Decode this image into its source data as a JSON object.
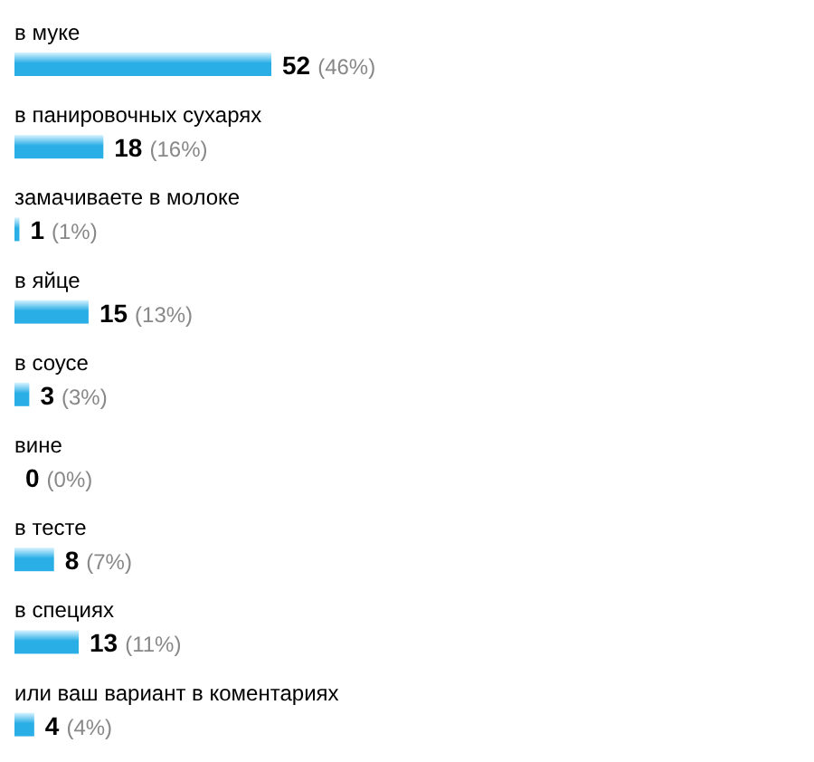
{
  "chart_data": {
    "type": "bar",
    "orientation": "horizontal",
    "color": "#2aaee6",
    "categories": [
      "в муке",
      "в панировочных сухарях",
      "замачиваете в молоке",
      "в яйце",
      "в соусе",
      "вине",
      "в тесте",
      "в специях",
      "или ваш вариант в коментариях"
    ],
    "values": [
      52,
      18,
      1,
      15,
      3,
      0,
      8,
      13,
      4
    ],
    "value_labels": [
      "52 (46%)",
      "18 (16%)",
      "1 (1%)",
      "15 (13%)",
      "3 (3%)",
      "0 (0%)",
      "8 (7%)",
      "13 (11%)",
      "4 (4%)"
    ]
  }
}
